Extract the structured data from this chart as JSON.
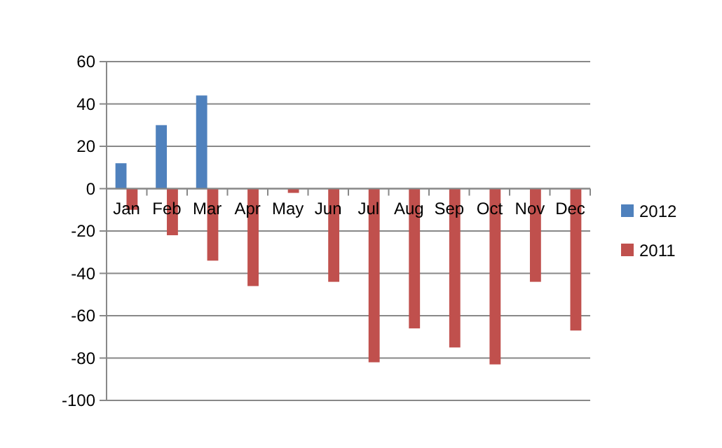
{
  "chart_data": {
    "type": "bar",
    "categories": [
      "Jan",
      "Feb",
      "Mar",
      "Apr",
      "May",
      "Jun",
      "Jul",
      "Aug",
      "Sep",
      "Oct",
      "Nov",
      "Dec"
    ],
    "series": [
      {
        "name": "2012",
        "color": "#4f81bd",
        "values": [
          12,
          30,
          44,
          null,
          null,
          null,
          null,
          null,
          null,
          null,
          null,
          null
        ]
      },
      {
        "name": "2011",
        "color": "#c0504d",
        "values": [
          -10,
          -22,
          -34,
          -46,
          -2,
          -44,
          -82,
          -66,
          -75,
          -83,
          -44,
          -67
        ]
      }
    ],
    "ylim": [
      -100,
      60
    ],
    "yticks": [
      -100,
      -80,
      -60,
      -40,
      -20,
      0,
      20,
      40,
      60
    ],
    "grid": "y",
    "legend": "right"
  }
}
